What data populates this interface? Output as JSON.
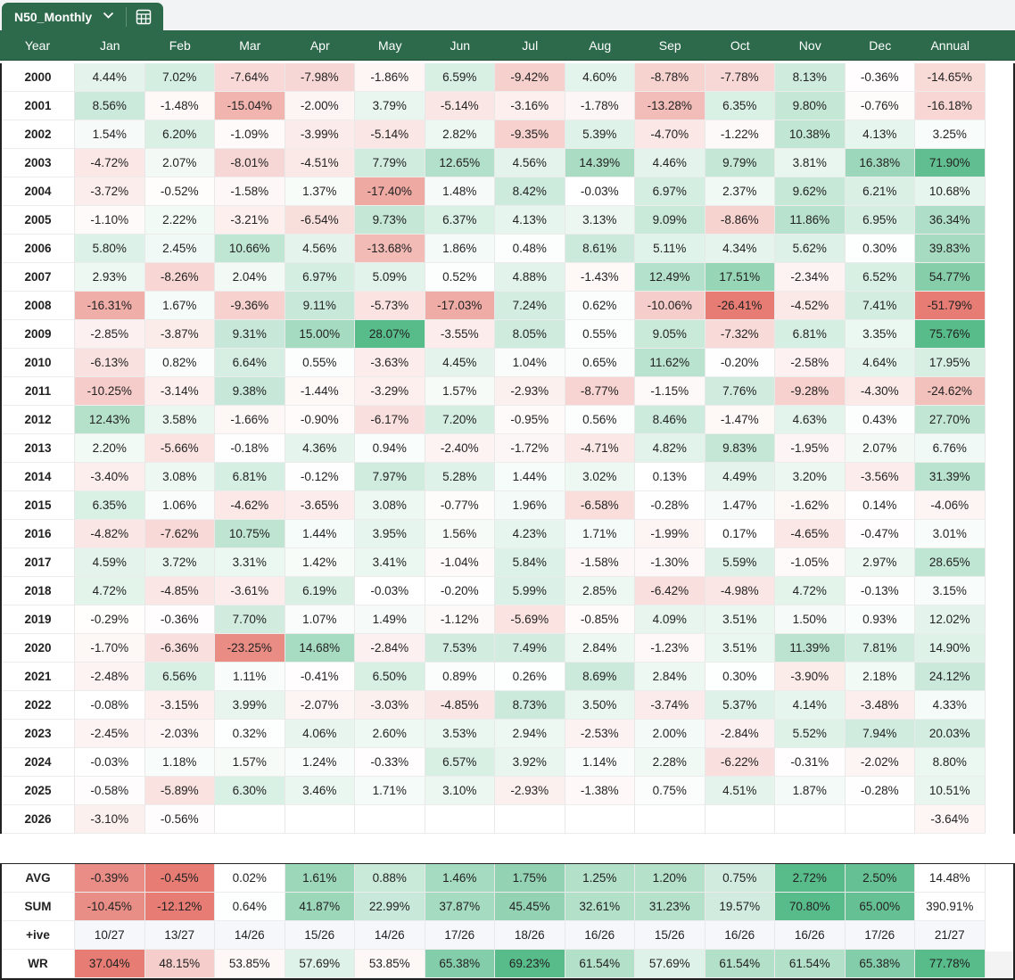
{
  "sheet_tab": {
    "name": "N50_Monthly",
    "dropdown_icon": "chevron-down-icon",
    "calc_icon": "calculator-icon"
  },
  "colors": {
    "header_bg": "#2d6a4b",
    "header_text": "#ffffff",
    "positive": "#57bb8a",
    "negative": "#e67c73",
    "neutral": "#ffffff"
  },
  "columns": [
    "Year",
    "Jan",
    "Feb",
    "Mar",
    "Apr",
    "May",
    "Jun",
    "Jul",
    "Aug",
    "Sep",
    "Oct",
    "Nov",
    "Dec",
    "Annual"
  ],
  "rows": [
    {
      "year": "2000",
      "cells": [
        "4.44%",
        "7.02%",
        "-7.64%",
        "-7.98%",
        "-1.86%",
        "6.59%",
        "-9.42%",
        "4.60%",
        "-8.78%",
        "-7.78%",
        "8.13%",
        "-0.36%",
        "-14.65%"
      ]
    },
    {
      "year": "2001",
      "cells": [
        "8.56%",
        "-1.48%",
        "-15.04%",
        "-2.00%",
        "3.79%",
        "-5.14%",
        "-3.16%",
        "-1.78%",
        "-13.28%",
        "6.35%",
        "9.80%",
        "-0.76%",
        "-16.18%"
      ]
    },
    {
      "year": "2002",
      "cells": [
        "1.54%",
        "6.20%",
        "-1.09%",
        "-3.99%",
        "-5.14%",
        "2.82%",
        "-9.35%",
        "5.39%",
        "-4.70%",
        "-1.22%",
        "10.38%",
        "4.13%",
        "3.25%"
      ]
    },
    {
      "year": "2003",
      "cells": [
        "-4.72%",
        "2.07%",
        "-8.01%",
        "-4.51%",
        "7.79%",
        "12.65%",
        "4.56%",
        "14.39%",
        "4.46%",
        "9.79%",
        "3.81%",
        "16.38%",
        "71.90%"
      ]
    },
    {
      "year": "2004",
      "cells": [
        "-3.72%",
        "-0.52%",
        "-1.58%",
        "1.37%",
        "-17.40%",
        "1.48%",
        "8.42%",
        "-0.03%",
        "6.97%",
        "2.37%",
        "9.62%",
        "6.21%",
        "10.68%"
      ]
    },
    {
      "year": "2005",
      "cells": [
        "-1.10%",
        "2.22%",
        "-3.21%",
        "-6.54%",
        "9.73%",
        "6.37%",
        "4.13%",
        "3.13%",
        "9.09%",
        "-8.86%",
        "11.86%",
        "6.95%",
        "36.34%"
      ]
    },
    {
      "year": "2006",
      "cells": [
        "5.80%",
        "2.45%",
        "10.66%",
        "4.56%",
        "-13.68%",
        "1.86%",
        "0.48%",
        "8.61%",
        "5.11%",
        "4.34%",
        "5.62%",
        "0.30%",
        "39.83%"
      ]
    },
    {
      "year": "2007",
      "cells": [
        "2.93%",
        "-8.26%",
        "2.04%",
        "6.97%",
        "5.09%",
        "0.52%",
        "4.88%",
        "-1.43%",
        "12.49%",
        "17.51%",
        "-2.34%",
        "6.52%",
        "54.77%"
      ]
    },
    {
      "year": "2008",
      "cells": [
        "-16.31%",
        "1.67%",
        "-9.36%",
        "9.11%",
        "-5.73%",
        "-17.03%",
        "7.24%",
        "0.62%",
        "-10.06%",
        "-26.41%",
        "-4.52%",
        "7.41%",
        "-51.79%"
      ]
    },
    {
      "year": "2009",
      "cells": [
        "-2.85%",
        "-3.87%",
        "9.31%",
        "15.00%",
        "28.07%",
        "-3.55%",
        "8.05%",
        "0.55%",
        "9.05%",
        "-7.32%",
        "6.81%",
        "3.35%",
        "75.76%"
      ]
    },
    {
      "year": "2010",
      "cells": [
        "-6.13%",
        "0.82%",
        "6.64%",
        "0.55%",
        "-3.63%",
        "4.45%",
        "1.04%",
        "0.65%",
        "11.62%",
        "-0.20%",
        "-2.58%",
        "4.64%",
        "17.95%"
      ]
    },
    {
      "year": "2011",
      "cells": [
        "-10.25%",
        "-3.14%",
        "9.38%",
        "-1.44%",
        "-3.29%",
        "1.57%",
        "-2.93%",
        "-8.77%",
        "-1.15%",
        "7.76%",
        "-9.28%",
        "-4.30%",
        "-24.62%"
      ]
    },
    {
      "year": "2012",
      "cells": [
        "12.43%",
        "3.58%",
        "-1.66%",
        "-0.90%",
        "-6.17%",
        "7.20%",
        "-0.95%",
        "0.56%",
        "8.46%",
        "-1.47%",
        "4.63%",
        "0.43%",
        "27.70%"
      ]
    },
    {
      "year": "2013",
      "cells": [
        "2.20%",
        "-5.66%",
        "-0.18%",
        "4.36%",
        "0.94%",
        "-2.40%",
        "-1.72%",
        "-4.71%",
        "4.82%",
        "9.83%",
        "-1.95%",
        "2.07%",
        "6.76%"
      ]
    },
    {
      "year": "2014",
      "cells": [
        "-3.40%",
        "3.08%",
        "6.81%",
        "-0.12%",
        "7.97%",
        "5.28%",
        "1.44%",
        "3.02%",
        "0.13%",
        "4.49%",
        "3.20%",
        "-3.56%",
        "31.39%"
      ]
    },
    {
      "year": "2015",
      "cells": [
        "6.35%",
        "1.06%",
        "-4.62%",
        "-3.65%",
        "3.08%",
        "-0.77%",
        "1.96%",
        "-6.58%",
        "-0.28%",
        "1.47%",
        "-1.62%",
        "0.14%",
        "-4.06%"
      ]
    },
    {
      "year": "2016",
      "cells": [
        "-4.82%",
        "-7.62%",
        "10.75%",
        "1.44%",
        "3.95%",
        "1.56%",
        "4.23%",
        "1.71%",
        "-1.99%",
        "0.17%",
        "-4.65%",
        "-0.47%",
        "3.01%"
      ]
    },
    {
      "year": "2017",
      "cells": [
        "4.59%",
        "3.72%",
        "3.31%",
        "1.42%",
        "3.41%",
        "-1.04%",
        "5.84%",
        "-1.58%",
        "-1.30%",
        "5.59%",
        "-1.05%",
        "2.97%",
        "28.65%"
      ]
    },
    {
      "year": "2018",
      "cells": [
        "4.72%",
        "-4.85%",
        "-3.61%",
        "6.19%",
        "-0.03%",
        "-0.20%",
        "5.99%",
        "2.85%",
        "-6.42%",
        "-4.98%",
        "4.72%",
        "-0.13%",
        "3.15%"
      ]
    },
    {
      "year": "2019",
      "cells": [
        "-0.29%",
        "-0.36%",
        "7.70%",
        "1.07%",
        "1.49%",
        "-1.12%",
        "-5.69%",
        "-0.85%",
        "4.09%",
        "3.51%",
        "1.50%",
        "0.93%",
        "12.02%"
      ]
    },
    {
      "year": "2020",
      "cells": [
        "-1.70%",
        "-6.36%",
        "-23.25%",
        "14.68%",
        "-2.84%",
        "7.53%",
        "7.49%",
        "2.84%",
        "-1.23%",
        "3.51%",
        "11.39%",
        "7.81%",
        "14.90%"
      ]
    },
    {
      "year": "2021",
      "cells": [
        "-2.48%",
        "6.56%",
        "1.11%",
        "-0.41%",
        "6.50%",
        "0.89%",
        "0.26%",
        "8.69%",
        "2.84%",
        "0.30%",
        "-3.90%",
        "2.18%",
        "24.12%"
      ]
    },
    {
      "year": "2022",
      "cells": [
        "-0.08%",
        "-3.15%",
        "3.99%",
        "-2.07%",
        "-3.03%",
        "-4.85%",
        "8.73%",
        "3.50%",
        "-3.74%",
        "5.37%",
        "4.14%",
        "-3.48%",
        "4.33%"
      ]
    },
    {
      "year": "2023",
      "cells": [
        "-2.45%",
        "-2.03%",
        "0.32%",
        "4.06%",
        "2.60%",
        "3.53%",
        "2.94%",
        "-2.53%",
        "2.00%",
        "-2.84%",
        "5.52%",
        "7.94%",
        "20.03%"
      ]
    },
    {
      "year": "2024",
      "cells": [
        "-0.03%",
        "1.18%",
        "1.57%",
        "1.24%",
        "-0.33%",
        "6.57%",
        "3.92%",
        "1.14%",
        "2.28%",
        "-6.22%",
        "-0.31%",
        "-2.02%",
        "8.80%"
      ]
    },
    {
      "year": "2025",
      "cells": [
        "-0.58%",
        "-5.89%",
        "6.30%",
        "3.46%",
        "1.71%",
        "3.10%",
        "-2.93%",
        "-1.38%",
        "0.75%",
        "4.51%",
        "1.87%",
        "-0.28%",
        "10.51%"
      ]
    },
    {
      "year": "2026",
      "cells": [
        "-3.10%",
        "-0.56%",
        "",
        "",
        "",
        "",
        "",
        "",
        "",
        "",
        "",
        "",
        "-3.64%"
      ]
    }
  ],
  "summary": [
    {
      "label": "AVG",
      "cells": [
        "-0.39%",
        "-0.45%",
        "0.02%",
        "1.61%",
        "0.88%",
        "1.46%",
        "1.75%",
        "1.25%",
        "1.20%",
        "0.75%",
        "2.72%",
        "2.50%",
        "14.48%"
      ]
    },
    {
      "label": "SUM",
      "cells": [
        "-10.45%",
        "-12.12%",
        "0.64%",
        "41.87%",
        "22.99%",
        "37.87%",
        "45.45%",
        "32.61%",
        "31.23%",
        "19.57%",
        "70.80%",
        "65.00%",
        "390.91%"
      ]
    },
    {
      "label": "+ive",
      "cells": [
        "10/27",
        "13/27",
        "14/26",
        "15/26",
        "14/26",
        "17/26",
        "18/26",
        "16/26",
        "15/26",
        "16/26",
        "16/26",
        "17/26",
        "21/27"
      ]
    },
    {
      "label": "WR",
      "cells": [
        "37.04%",
        "48.15%",
        "53.85%",
        "57.69%",
        "53.85%",
        "65.38%",
        "69.23%",
        "61.54%",
        "57.69%",
        "61.54%",
        "61.54%",
        "65.38%",
        "77.78%"
      ]
    }
  ]
}
